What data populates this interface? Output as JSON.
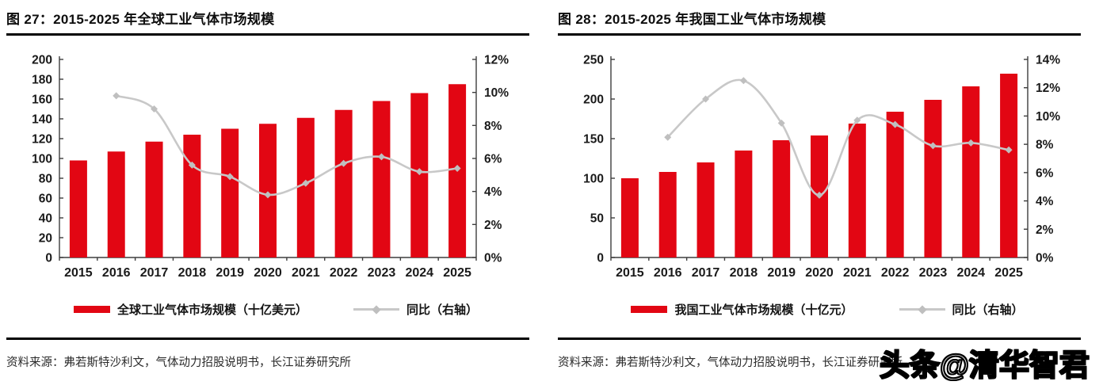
{
  "panels": [
    {
      "figure_title": "图 27：2015-2025 年全球工业气体市场规模",
      "source": "资料来源：弗若斯特沙利文，气体动力招股说明书，长江证券研究所"
    },
    {
      "figure_title": "图 28：2015-2025 年我国工业气体市场规模",
      "source": "资料来源：弗若斯特沙利文，气体动力招股说明书，长江证券研究所"
    }
  ],
  "chart_data": [
    {
      "type": "bar",
      "title": "图 27：2015-2025 年全球工业气体市场规模",
      "categories": [
        "2015",
        "2016",
        "2017",
        "2018",
        "2019",
        "2020",
        "2021",
        "2022",
        "2023",
        "2024",
        "2025"
      ],
      "series": [
        {
          "name": "全球工业气体市场规模（十亿美元）",
          "type": "bar",
          "axis": "left",
          "color": "#e20613",
          "values": [
            98,
            107,
            117,
            124,
            130,
            135,
            141,
            149,
            158,
            166,
            175
          ]
        },
        {
          "name": "同比（右轴）",
          "type": "line",
          "axis": "right",
          "color": "#c8c8c8",
          "marker_color": "#bfbfbf",
          "values": [
            null,
            9.8,
            9.0,
            5.6,
            4.9,
            3.8,
            4.5,
            5.7,
            6.1,
            5.2,
            5.4
          ]
        }
      ],
      "left_axis": {
        "min": 0,
        "max": 200,
        "step": 20,
        "tick_labels": [
          "0",
          "20",
          "40",
          "60",
          "80",
          "100",
          "120",
          "140",
          "160",
          "180",
          "200"
        ]
      },
      "right_axis": {
        "min": 0,
        "max": 12,
        "step": 2,
        "tick_labels": [
          "0%",
          "2%",
          "4%",
          "6%",
          "8%",
          "10%",
          "12%"
        ]
      },
      "grid": false,
      "legend_position": "bottom"
    },
    {
      "type": "bar",
      "title": "图 28：2015-2025 年我国工业气体市场规模",
      "categories": [
        "2015",
        "2016",
        "2017",
        "2018",
        "2019",
        "2020",
        "2021",
        "2022",
        "2023",
        "2024",
        "2025"
      ],
      "series": [
        {
          "name": "我国工业气体市场规模（十亿元）",
          "type": "bar",
          "axis": "left",
          "color": "#e20613",
          "values": [
            100,
            108,
            120,
            135,
            148,
            154,
            169,
            184,
            199,
            216,
            232
          ]
        },
        {
          "name": "同比（右轴）",
          "type": "line",
          "axis": "right",
          "color": "#c8c8c8",
          "marker_color": "#bfbfbf",
          "values": [
            null,
            8.5,
            11.2,
            12.5,
            9.5,
            4.4,
            9.7,
            9.4,
            7.9,
            8.1,
            7.6
          ]
        }
      ],
      "left_axis": {
        "min": 0,
        "max": 250,
        "step": 50,
        "tick_labels": [
          "0",
          "50",
          "100",
          "150",
          "200",
          "250"
        ]
      },
      "right_axis": {
        "min": 0,
        "max": 14,
        "step": 2,
        "tick_labels": [
          "0%",
          "2%",
          "4%",
          "6%",
          "8%",
          "10%",
          "12%",
          "14%"
        ]
      },
      "grid": false,
      "legend_position": "bottom"
    }
  ],
  "watermark": {
    "text": "头条@清华智君"
  },
  "colors": {
    "bar_red": "#e20613",
    "line_gray": "#c8c8c8",
    "marker_gray": "#bfbfbf",
    "axis_line": "#3d3d3d",
    "tick_text": "#1a1a1a"
  }
}
